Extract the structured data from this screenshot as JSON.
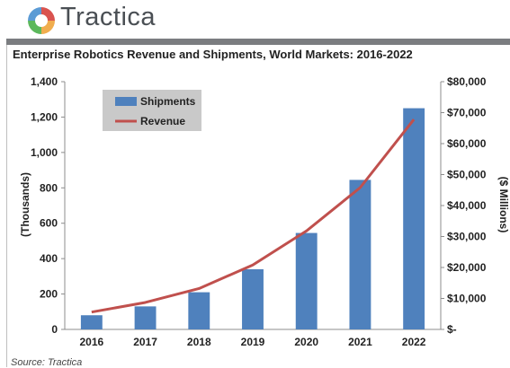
{
  "header": {
    "brand": "Tractica"
  },
  "colors": {
    "bar": "#4f81bd",
    "line": "#c0504d",
    "header_bar": "#7b7d80",
    "logo": [
      "#d9534f",
      "#f0ad4e",
      "#5cb85c",
      "#5b9bd5"
    ]
  },
  "footer": {
    "source": "Source: Tractica"
  },
  "chart_data": {
    "type": "bar",
    "title": "Enterprise Robotics Revenue and Shipments, World Markets: 2016-2022",
    "categories": [
      "2016",
      "2017",
      "2018",
      "2019",
      "2020",
      "2021",
      "2022"
    ],
    "series": [
      {
        "name": "Shipments",
        "type": "bar",
        "axis": "left",
        "values": [
          80,
          130,
          210,
          340,
          545,
          845,
          1250
        ]
      },
      {
        "name": "Revenue",
        "type": "line",
        "axis": "right",
        "values": [
          5600,
          8700,
          13200,
          20800,
          31800,
          45800,
          67800
        ]
      }
    ],
    "ylabel": "(Thousands)",
    "y2label": "($ Millions)",
    "ylim": [
      0,
      1400
    ],
    "y2lim": [
      0,
      80000
    ],
    "y_ticks": [
      "0",
      "200",
      "400",
      "600",
      "800",
      "1,000",
      "1,200",
      "1,400"
    ],
    "y2_ticks": [
      "$-",
      "$10,000",
      "$20,000",
      "$30,000",
      "$40,000",
      "$50,000",
      "$60,000",
      "$70,000",
      "$80,000"
    ],
    "grid": false,
    "legend": "top-left"
  }
}
